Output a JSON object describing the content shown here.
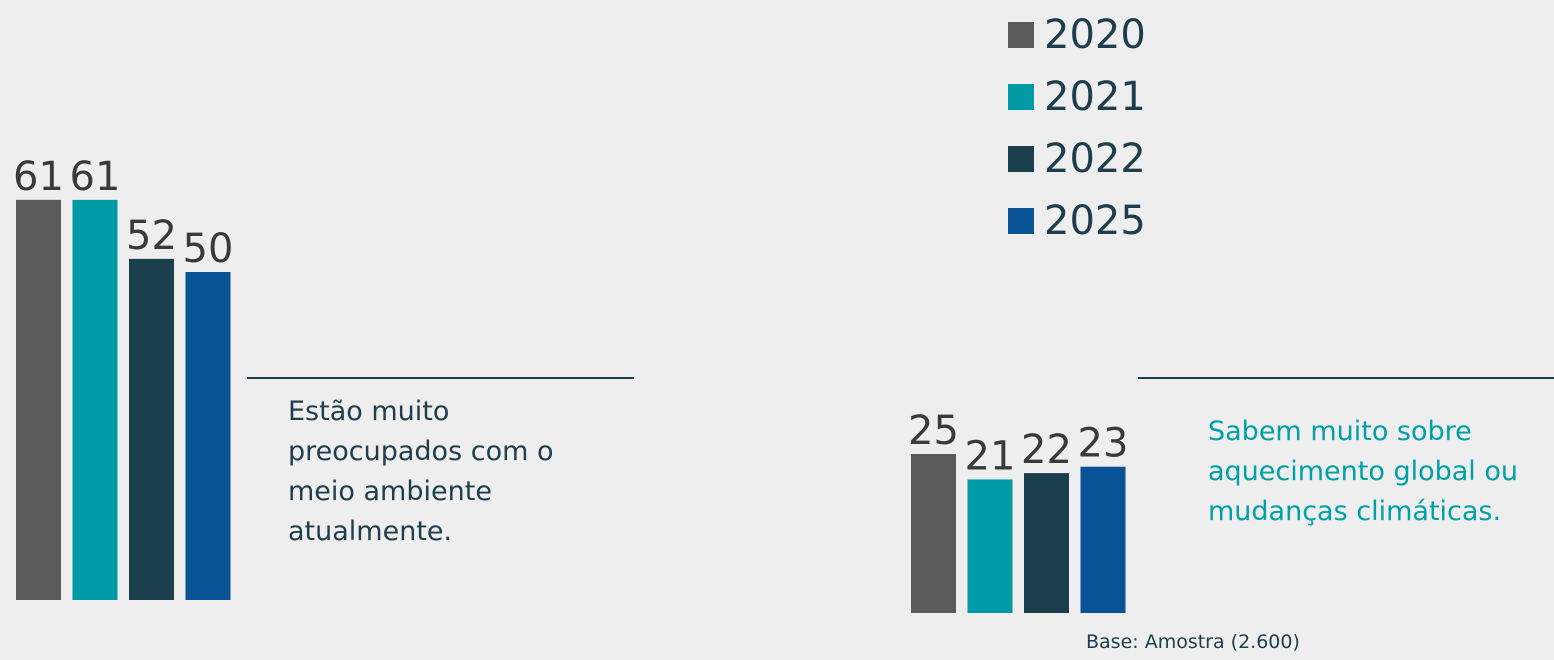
{
  "colors": {
    "2020": "#5a5a5a",
    "2021": "#009aa6",
    "2022": "#1a3e4c",
    "2025": "#0a5296"
  },
  "legend": [
    {
      "label": "2020",
      "color": "#5a5a5a"
    },
    {
      "label": "2021",
      "color": "#009aa6"
    },
    {
      "label": "2022",
      "color": "#1a3e4c"
    },
    {
      "label": "2025",
      "color": "#0a5296"
    }
  ],
  "chart_data": [
    {
      "type": "bar",
      "categories": [
        "2020",
        "2021",
        "2022",
        "2025"
      ],
      "values": [
        61,
        61,
        52,
        50
      ],
      "caption": "Estão muito preocupados com o meio ambiente atualmente."
    },
    {
      "type": "bar",
      "categories": [
        "2020",
        "2021",
        "2022",
        "2025"
      ],
      "values": [
        25,
        21,
        22,
        23
      ],
      "caption": "Sabem muito sobre aquecimento global ou mudanças climáticas."
    }
  ],
  "base_note": "Base: Amostra (2.600)"
}
